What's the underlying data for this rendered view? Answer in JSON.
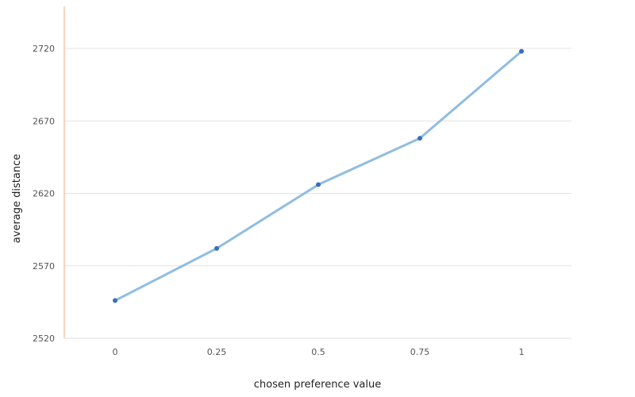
{
  "chart_data": {
    "type": "line",
    "title": "",
    "xlabel": "chosen preference value",
    "ylabel": "average distance",
    "categories": [
      "0",
      "0.25",
      "0.5",
      "0.75",
      "1"
    ],
    "series": [
      {
        "values": [
          2546,
          2582,
          2626,
          2658,
          2718
        ]
      }
    ],
    "ylim": [
      2520,
      2740
    ],
    "yticks": [
      "2520",
      "2570",
      "2620",
      "2670",
      "2720"
    ],
    "grid": true,
    "legend": "none",
    "colors": {
      "line": "#8fbde2",
      "marker": "#3a6fbf",
      "y_axis": "#f4c9a8"
    }
  }
}
